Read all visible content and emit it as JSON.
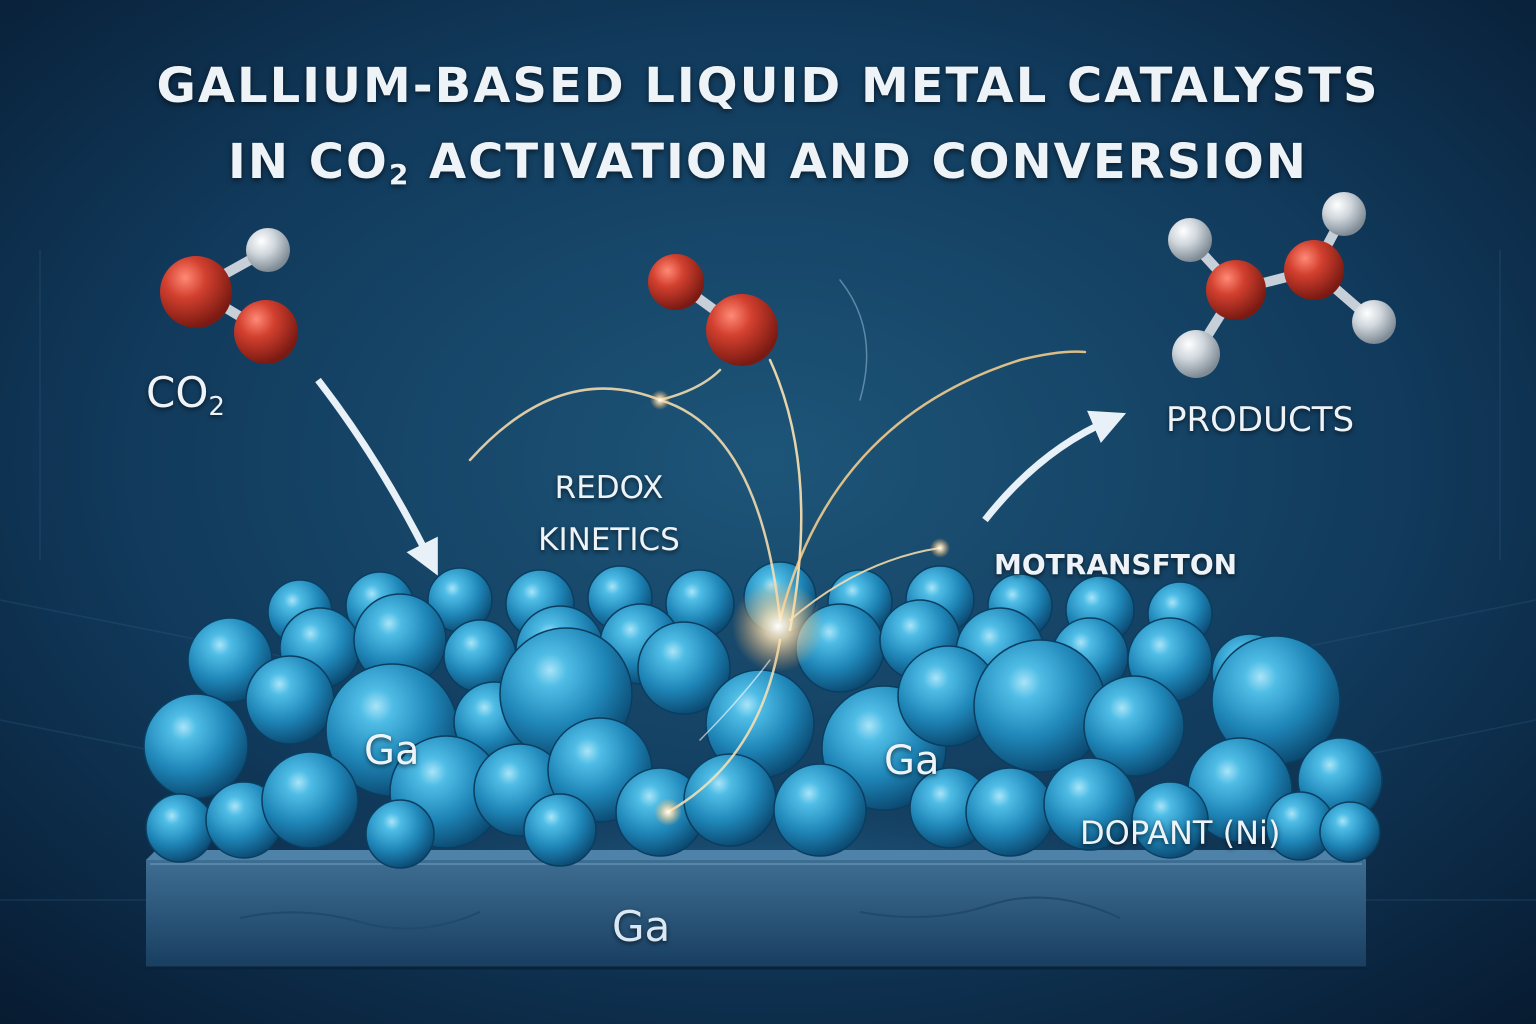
{
  "title": {
    "line1": "GALLIUM-BASED LIQUID METAL CATALYSTS",
    "line2_prefix": "IN CO",
    "line2_sub": "2",
    "line2_suffix": " ACTIVATION AND CONVERSION"
  },
  "labels": {
    "co2_main": "CO",
    "co2_sub": "2",
    "redox_line1": "REDOX",
    "redox_line2": "KINETICS",
    "motransfton": "MOTRANSFTON",
    "products": "PRODUCTS",
    "ga_left": "Ga",
    "ga_right": "Ga",
    "ga_base": "Ga",
    "dopant": "DOPANT (Ni)"
  },
  "colors": {
    "background": "#0b2440",
    "gallium_sphere": "#2f9dcc",
    "oxygen_atom": "#c2362a",
    "hydrogen_atom": "#cfd6dc",
    "spark": "#ffd9a0",
    "text": "#eef3f8"
  }
}
